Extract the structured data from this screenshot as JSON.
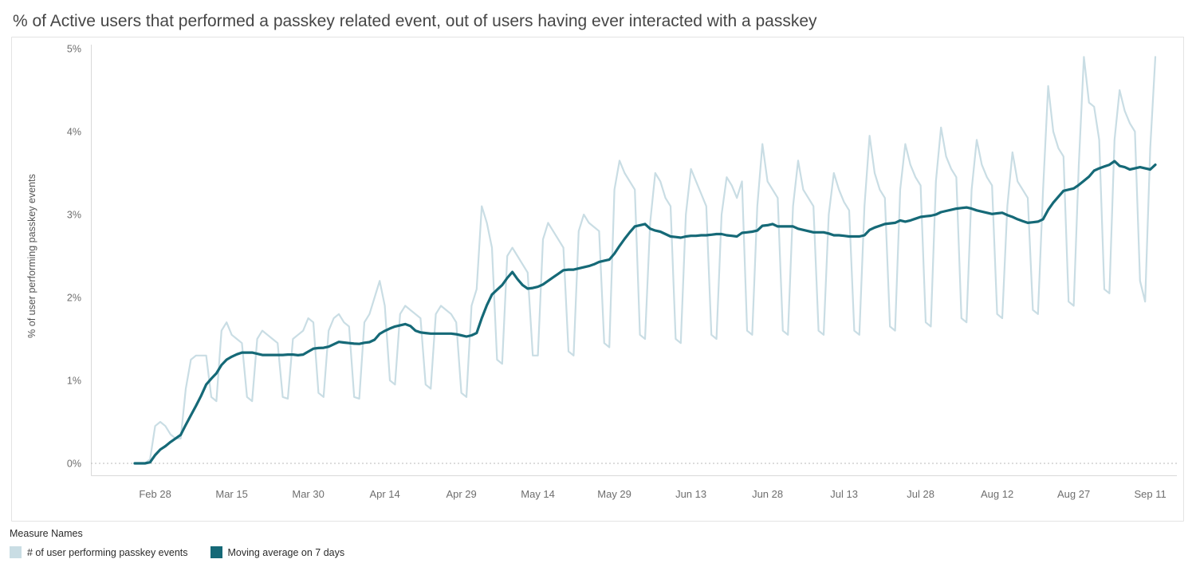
{
  "title": "% of Active users that performed a passkey related event, out of users having ever interacted with a passkey",
  "colors": {
    "daily": "#c9dde4",
    "moving_avg": "#156977",
    "axis_text": "#6e6e6e",
    "title_text": "#464646",
    "zero_line": "#b9b9b9",
    "pane_border": "#e3e3e3"
  },
  "legend": {
    "title": "Measure Names",
    "items": [
      {
        "label": "# of user performing passkey events",
        "color_key": "daily"
      },
      {
        "label": "Moving average on 7 days",
        "color_key": "moving_avg"
      }
    ]
  },
  "chart_data": {
    "type": "line",
    "title": "% of Active users that performed a passkey related event, out of users having ever interacted with a passkey",
    "xlabel": "",
    "ylabel": "% of user performing passkey events",
    "ylim": [
      0,
      5
    ],
    "y_ticks": [
      "0%",
      "1%",
      "2%",
      "3%",
      "4%",
      "5%"
    ],
    "grid": "dotted zero line only",
    "legend_position": "bottom-left",
    "x_start_date": "Feb 24",
    "x_end_date": "Sep 12",
    "x_ticks": [
      {
        "label": "Feb 28",
        "index": 4
      },
      {
        "label": "Mar 15",
        "index": 19
      },
      {
        "label": "Mar 30",
        "index": 34
      },
      {
        "label": "Apr 14",
        "index": 49
      },
      {
        "label": "Apr 29",
        "index": 64
      },
      {
        "label": "May 14",
        "index": 79
      },
      {
        "label": "May 29",
        "index": 94
      },
      {
        "label": "Jun 13",
        "index": 109
      },
      {
        "label": "Jun 28",
        "index": 124
      },
      {
        "label": "Jul 13",
        "index": 139
      },
      {
        "label": "Jul 28",
        "index": 154
      },
      {
        "label": "Aug 12",
        "index": 169
      },
      {
        "label": "Aug 27",
        "index": 184
      },
      {
        "label": "Sep 11",
        "index": 199
      }
    ],
    "series": [
      {
        "name": "# of user performing passkey events",
        "unit": "percent",
        "values": [
          0.0,
          0.0,
          0.0,
          0.05,
          0.45,
          0.5,
          0.45,
          0.35,
          0.3,
          0.3,
          0.9,
          1.25,
          1.3,
          1.3,
          1.3,
          0.8,
          0.75,
          1.6,
          1.7,
          1.55,
          1.5,
          1.45,
          0.8,
          0.75,
          1.5,
          1.6,
          1.55,
          1.5,
          1.45,
          0.8,
          0.78,
          1.5,
          1.55,
          1.6,
          1.75,
          1.7,
          0.85,
          0.8,
          1.6,
          1.75,
          1.8,
          1.7,
          1.65,
          0.8,
          0.78,
          1.7,
          1.8,
          2.0,
          2.2,
          1.9,
          1.0,
          0.95,
          1.8,
          1.9,
          1.85,
          1.8,
          1.75,
          0.95,
          0.9,
          1.8,
          1.9,
          1.85,
          1.8,
          1.7,
          0.85,
          0.8,
          1.9,
          2.1,
          3.1,
          2.9,
          2.6,
          1.25,
          1.2,
          2.5,
          2.6,
          2.5,
          2.4,
          2.3,
          1.3,
          1.3,
          2.7,
          2.9,
          2.8,
          2.7,
          2.6,
          1.35,
          1.3,
          2.8,
          3.0,
          2.9,
          2.85,
          2.8,
          1.45,
          1.4,
          3.3,
          3.65,
          3.5,
          3.4,
          3.3,
          1.55,
          1.5,
          2.9,
          3.5,
          3.4,
          3.2,
          3.1,
          1.5,
          1.45,
          3.0,
          3.55,
          3.4,
          3.25,
          3.1,
          1.55,
          1.5,
          3.0,
          3.45,
          3.35,
          3.2,
          3.4,
          1.6,
          1.55,
          3.1,
          3.85,
          3.4,
          3.3,
          3.2,
          1.6,
          1.55,
          3.1,
          3.65,
          3.3,
          3.2,
          3.1,
          1.6,
          1.55,
          3.0,
          3.5,
          3.3,
          3.15,
          3.05,
          1.6,
          1.55,
          3.1,
          3.95,
          3.5,
          3.3,
          3.2,
          1.65,
          1.6,
          3.3,
          3.85,
          3.6,
          3.45,
          3.35,
          1.7,
          1.65,
          3.4,
          4.05,
          3.7,
          3.55,
          3.45,
          1.75,
          1.7,
          3.3,
          3.9,
          3.6,
          3.45,
          3.35,
          1.8,
          1.75,
          3.1,
          3.75,
          3.4,
          3.3,
          3.2,
          1.85,
          1.8,
          3.3,
          4.55,
          4.0,
          3.8,
          3.7,
          1.95,
          1.9,
          3.6,
          4.9,
          4.35,
          4.3,
          3.9,
          2.1,
          2.05,
          3.9,
          4.5,
          4.25,
          4.1,
          4.0,
          2.2,
          1.95,
          3.8,
          4.9
        ]
      },
      {
        "name": "Moving average on 7 days",
        "unit": "percent",
        "derived": "trailing 7-day mean of the first series",
        "window_days": 7,
        "values_at_ticks": [
          0.1,
          1.29,
          1.35,
          1.6,
          1.54,
          2.13,
          2.53,
          2.74,
          2.87,
          2.74,
          2.97,
          3.01,
          3.31,
          3.54
        ]
      }
    ]
  }
}
